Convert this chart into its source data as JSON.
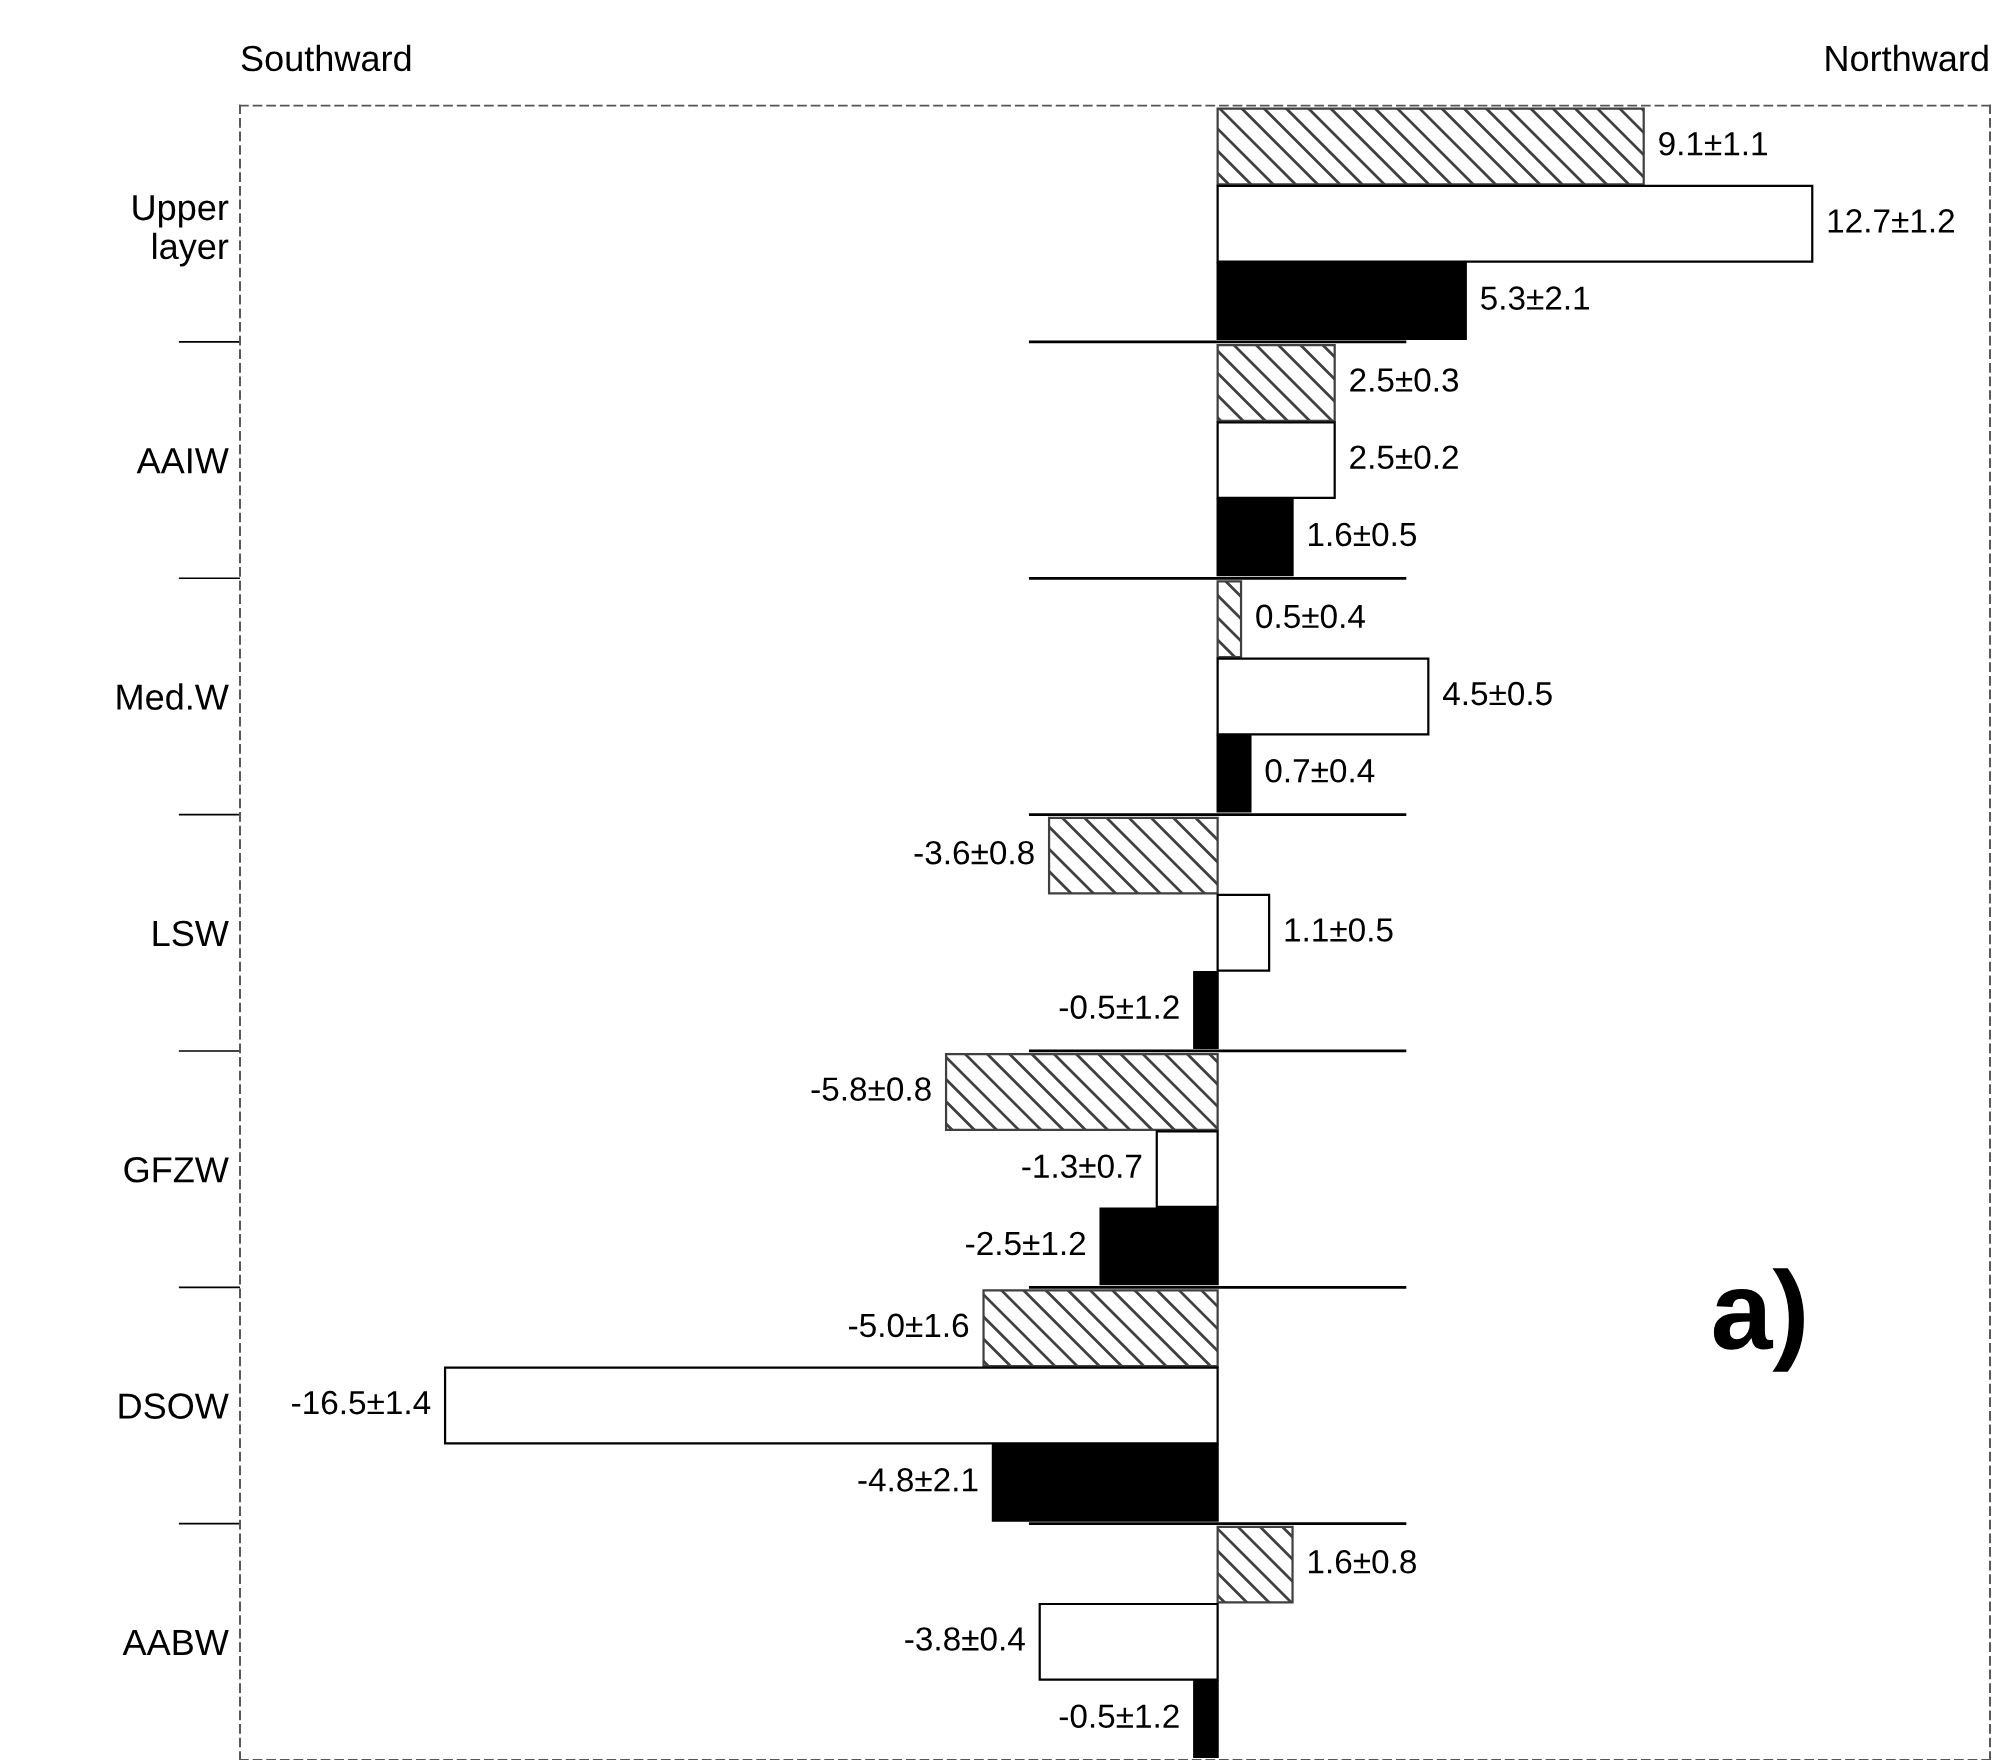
{
  "chart_data": {
    "type": "bar",
    "orientation": "horizontal",
    "tick_labels": "y",
    "grid": false,
    "legend": false,
    "categories": [
      "Upper\nlayer",
      "AAIW",
      "Med.W",
      "LSW",
      "GFZW",
      "DSOW",
      "AABW"
    ],
    "series": [
      {
        "color": "#404040",
        "values": [
          9.1,
          2.5,
          0.5,
          -3.6,
          -5.8,
          -5.0,
          1.6
        ],
        "value_labels": [
          "9.1±1.1",
          "2.5±0.3",
          "0.5±0.4",
          "-3.6±0.8",
          "-5.8±0.8",
          "-5.0±1.6",
          "1.6±0.8"
        ]
      },
      {
        "color": "#ffffff",
        "values": [
          12.7,
          2.5,
          4.5,
          1.1,
          -1.3,
          -16.5,
          -3.8
        ],
        "value_labels": [
          "12.7±1.2",
          "2.5±0.2",
          "4.5±0.5",
          "1.1±0.5",
          "-1.3±0.7",
          "-16.5±1.4",
          "-3.8±0.4"
        ]
      },
      {
        "color": "#000000",
        "values": [
          5.3,
          1.6,
          0.7,
          -0.5,
          -2.5,
          -4.8,
          -0.5
        ],
        "value_labels": [
          "5.3±2.1",
          "1.6±0.5",
          "0.7±0.4",
          "-0.5±1.2",
          "-2.5±1.2",
          "-4.8±2.1",
          "-0.5±1.2"
        ]
      }
    ],
    "annotations": [
      "Southward",
      "Northward",
      "a)"
    ]
  }
}
